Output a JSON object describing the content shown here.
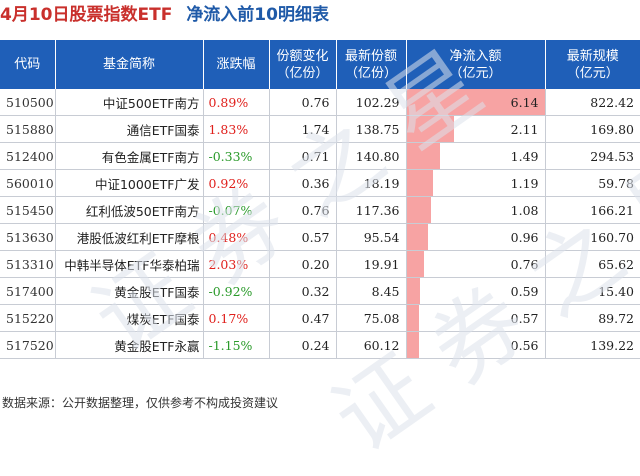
{
  "title": {
    "part1": "4月10日股票指数ETF",
    "part2": "净流入前10明细表"
  },
  "columns": [
    "代码",
    "基金简称",
    "涨跌幅",
    "份额变化\n（亿份）",
    "最新份额\n（亿份）",
    "净流入额\n（亿元）",
    "最新规模\n（亿元）"
  ],
  "columns_display": {
    "code": "代码",
    "name": "基金简称",
    "change": "涨跌幅",
    "share_change_1": "份额变化",
    "share_change_2": "（亿份）",
    "latest_share_1": "最新份额",
    "latest_share_2": "（亿份）",
    "net_inflow_1": "净流入额",
    "net_inflow_2": "（亿元）",
    "latest_scale_1": "最新规模",
    "latest_scale_2": "（亿元）"
  },
  "rows": [
    {
      "code": "510500",
      "name": "中证500ETF南方",
      "change": "0.89%",
      "change_dir": "up",
      "share_change": "0.76",
      "latest_share": "102.29",
      "net_inflow": "6.14",
      "latest_scale": "822.42"
    },
    {
      "code": "515880",
      "name": "通信ETF国泰",
      "change": "1.83%",
      "change_dir": "up",
      "share_change": "1.74",
      "latest_share": "138.75",
      "net_inflow": "2.11",
      "latest_scale": "169.80"
    },
    {
      "code": "512400",
      "name": "有色金属ETF南方",
      "change": "-0.33%",
      "change_dir": "down",
      "share_change": "0.71",
      "latest_share": "140.80",
      "net_inflow": "1.49",
      "latest_scale": "294.53"
    },
    {
      "code": "560010",
      "name": "中证1000ETF广发",
      "change": "0.92%",
      "change_dir": "up",
      "share_change": "0.36",
      "latest_share": "18.19",
      "net_inflow": "1.19",
      "latest_scale": "59.78"
    },
    {
      "code": "515450",
      "name": "红利低波50ETF南方",
      "change": "-0.07%",
      "change_dir": "down",
      "share_change": "0.76",
      "latest_share": "117.36",
      "net_inflow": "1.08",
      "latest_scale": "166.21"
    },
    {
      "code": "513630",
      "name": "港股低波红利ETF摩根",
      "change": "0.48%",
      "change_dir": "up",
      "share_change": "0.57",
      "latest_share": "95.54",
      "net_inflow": "0.96",
      "latest_scale": "160.70"
    },
    {
      "code": "513310",
      "name": "中韩半导体ETF华泰柏瑞",
      "change": "2.03%",
      "change_dir": "up",
      "share_change": "0.20",
      "latest_share": "19.91",
      "net_inflow": "0.76",
      "latest_scale": "65.62"
    },
    {
      "code": "517400",
      "name": "黄金股ETF国泰",
      "change": "-0.92%",
      "change_dir": "down",
      "share_change": "0.32",
      "latest_share": "8.45",
      "net_inflow": "0.59",
      "latest_scale": "15.40"
    },
    {
      "code": "515220",
      "name": "煤炭ETF国泰",
      "change": "0.17%",
      "change_dir": "up",
      "share_change": "0.47",
      "latest_share": "75.08",
      "net_inflow": "0.57",
      "latest_scale": "89.72"
    },
    {
      "code": "517520",
      "name": "黄金股ETF永赢",
      "change": "-1.15%",
      "change_dir": "down",
      "share_change": "0.24",
      "latest_share": "60.12",
      "net_inflow": "0.56",
      "latest_scale": "139.22"
    }
  ],
  "footer": "数据来源：公开数据整理，仅供参考不构成投资建议",
  "colors": {
    "header_bg": "#1f5fb8",
    "up": "#e0201c",
    "down": "#2a9a2a",
    "bar": "#f7a3a3"
  }
}
